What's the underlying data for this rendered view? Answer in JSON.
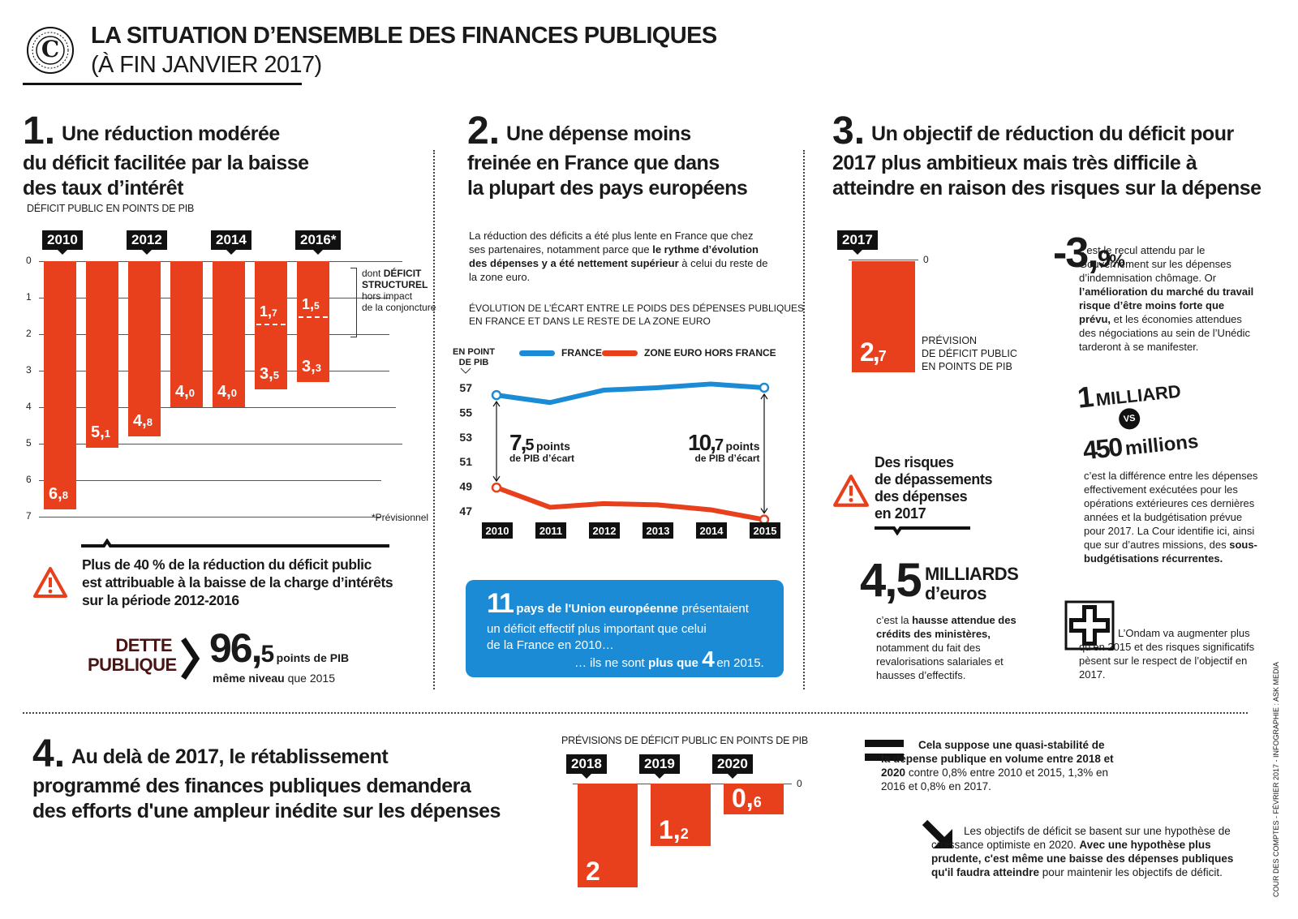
{
  "header": {
    "logo_letter": "C",
    "title": "LA SITUATION D’ENSEMBLE DES FINANCES PUBLIQUES",
    "subtitle": "(À FIN JANVIER 2017)"
  },
  "section1": {
    "number": "1.",
    "title_lines": [
      "Une réduction modérée",
      "du déficit facilitée par la baisse",
      "des taux d’intérêt"
    ],
    "chart_caption": "DÉFICIT PUBLIC EN POINTS DE PIB",
    "structural_note": [
      "dont",
      "DÉFICIT",
      "STRUCTUREL",
      "hors impact",
      "de la conjoncture"
    ],
    "footnote": "*Prévisionnel",
    "warning_text": [
      "Plus de 40 % de la réduction du déficit public",
      "est attribuable à la baisse de la charge d’intérêts",
      "sur la période 2012-2016"
    ],
    "debt_label_1": "DETTE",
    "debt_label_2": "PUBLIQUE",
    "debt_int": "96,",
    "debt_dec": "5",
    "debt_unit": "points de PIB",
    "debt_note": "même niveau",
    "debt_note_2": "que 2015"
  },
  "section2": {
    "number": "2.",
    "title_lines": [
      "Une dépense moins",
      "freinée en France que dans",
      "la plupart des pays européens"
    ],
    "intro": "La réduction des déficits a été plus lente en France que chez ses partenaires, notamment parce que",
    "intro_bold": "le rythme d’évolution des dépenses y a été nettement supérieur",
    "intro_end": "à celui du reste de la zone euro.",
    "chart_caption_1": "ÉVOLUTION DE L’ÉCART ENTRE LE POIDS DES DÉPENSES PUBLIQUES",
    "chart_caption_2": "EN FRANCE ET DANS LE RESTE DE LA ZONE EURO",
    "ylabel_1": "EN POINT",
    "ylabel_2": "DE PIB",
    "gap_2010_int": "7,",
    "gap_2010_dec": "5",
    "gap_2015_int": "10,",
    "gap_2015_dec": "7",
    "gap_word": "points",
    "gap_sub": "de PIB d’écart",
    "box_num": "11",
    "box_text_bold": "pays de l'Union européenne",
    "box_text_1": "présentaient",
    "box_text_2": "un déficit effectif plus important que celui",
    "box_text_3": "de la France en 2010…",
    "box_text_4": "… ils ne sont",
    "box_text_5": "plus que",
    "box_num_2": "4",
    "box_text_6": "en 2015."
  },
  "section3": {
    "number": "3.",
    "title_lines": [
      "Un objectif de réduction du déficit pour",
      "2017 plus ambitieux mais très difficile à",
      "atteindre en raison des risques sur la dépense"
    ],
    "year": "2017",
    "zero": "0",
    "bar_int": "2,",
    "bar_dec": "7",
    "bar_caption": [
      "PRÉVISION",
      "DE DÉFICIT PUBLIC",
      "EN POINTS DE PIB"
    ],
    "risk_title": [
      "Des risques",
      "de dépassements",
      "des dépenses",
      "en 2017"
    ],
    "big_int": "4,",
    "big_dec": "5",
    "big_unit_1": "MILLIARDS",
    "big_unit_2": "d’euros",
    "big_text_1": "c’est la",
    "big_text_bold": "hausse attendue des crédits des ministères,",
    "big_text_2": "notamment du fait des revalorisations salariales et hausses d’effectifs.",
    "pct_int": "-3,",
    "pct_dec": "9",
    "pct_sign": "%",
    "pct_text_1": "c’est le recul attendu par le Gouvernement sur les dépenses d’indemnisation chômage. Or",
    "pct_text_bold": "l’amélioration du marché du travail risque d’être moins forte que prévu,",
    "pct_text_2": "et les économies attendues des négociations au sein de l’Unédic tarderont à se manifester.",
    "milliard_1": "1",
    "milliard_2": "MILLIARD",
    "vs": "VS",
    "millions_1": "450",
    "millions_2": "millions",
    "opex_text_1": "c’est la différence entre les dépenses effectivement exécutées pour les opérations extérieures ces dernières années et la budgétisation prévue pour 2017. La Cour identifie ici, ainsi que sur d’autres missions, des",
    "opex_text_bold": "sous-budgétisations récurrentes.",
    "ondam_text": "L’Ondam va augmenter plus qu’en 2015 et des risques significatifs pèsent sur le respect de l’objectif en 2017."
  },
  "section4": {
    "number": "4.",
    "title_lines": [
      "Au delà de 2017, le rétablissement",
      "programmé des finances publiques demandera",
      "des efforts d'une ampleur inédite sur les dépenses"
    ],
    "chart_caption": "PRÉVISIONS DE DÉFICIT PUBLIC EN POINTS DE PIB",
    "zero": "0",
    "equal_text_bold": "Cela suppose une quasi-stabilité de la dépense publique en volume entre 2018 et 2020",
    "equal_text": "contre 0,8% entre 2010 et 2015, 1,3% en 2016 et 0,8% en 2017.",
    "arrow_text_1": "Les objectifs de déficit se basent sur une hypothèse de croissance optimiste en 2020.",
    "arrow_text_bold": "Avec une hypothèse plus prudente, c'est même une baisse des dépenses publiques qu'il faudra atteindre",
    "arrow_text_2": "pour maintenir les objectifs de déficit."
  },
  "credit": "COUR DES COMPTES - FÉVRIER 2017 - INFOGRAPHIE : ASK MEDIA",
  "colors": {
    "accent": "#e8401c",
    "blue": "#1b8bd6",
    "box_blue": "#1b8bd6",
    "dark": "#111111"
  },
  "chart_data": [
    {
      "type": "bar",
      "title": "DÉFICIT PUBLIC EN POINTS DE PIB",
      "categories": [
        "2010",
        "2011",
        "2012",
        "2013",
        "2014",
        "2015",
        "2016*"
      ],
      "category_labels_shown": [
        "2010",
        "2012",
        "2014",
        "2016*"
      ],
      "values": [
        6.8,
        5.1,
        4.8,
        4.0,
        4.0,
        3.5,
        3.3
      ],
      "value_labels": [
        "6,8",
        "5,1",
        "4,8",
        "4,0",
        "4,0",
        "3,5",
        "3,3"
      ],
      "structural": [
        null,
        null,
        null,
        null,
        null,
        1.7,
        1.5
      ],
      "structural_labels": [
        "1,7",
        "1,5"
      ],
      "ylim": [
        0,
        7
      ],
      "yticks": [
        0,
        1,
        2,
        3,
        4,
        5,
        6,
        7
      ],
      "inverted": true
    },
    {
      "type": "line",
      "title": "ÉVOLUTION DE L’ÉCART ENTRE LE POIDS DES DÉPENSES PUBLIQUES EN FRANCE ET DANS LE RESTE DE LA ZONE EURO",
      "ylabel": "EN POINT DE PIB",
      "x": [
        "2010",
        "2011",
        "2012",
        "2013",
        "2014",
        "2015"
      ],
      "series": [
        {
          "name": "FRANCE",
          "color": "#1b8bd6",
          "values": [
            56.4,
            55.8,
            56.8,
            57.0,
            57.3,
            57.0
          ]
        },
        {
          "name": "ZONE EURO HORS FRANCE",
          "color": "#e8401c",
          "values": [
            48.9,
            47.3,
            47.6,
            47.5,
            47.1,
            46.3
          ]
        }
      ],
      "yticks": [
        47,
        49,
        51,
        53,
        55,
        57
      ],
      "ylim": [
        46,
        58
      ]
    },
    {
      "type": "bar",
      "title": "PRÉVISION DE DÉFICIT PUBLIC EN POINTS DE PIB",
      "categories": [
        "2017"
      ],
      "values": [
        2.7
      ],
      "value_labels": [
        "2,7"
      ]
    },
    {
      "type": "bar",
      "title": "PRÉVISIONS DE DÉFICIT PUBLIC EN POINTS DE PIB",
      "categories": [
        "2018",
        "2019",
        "2020"
      ],
      "values": [
        2,
        1.2,
        0.6
      ],
      "value_labels": [
        "2",
        "1,2",
        "0,6"
      ]
    }
  ]
}
